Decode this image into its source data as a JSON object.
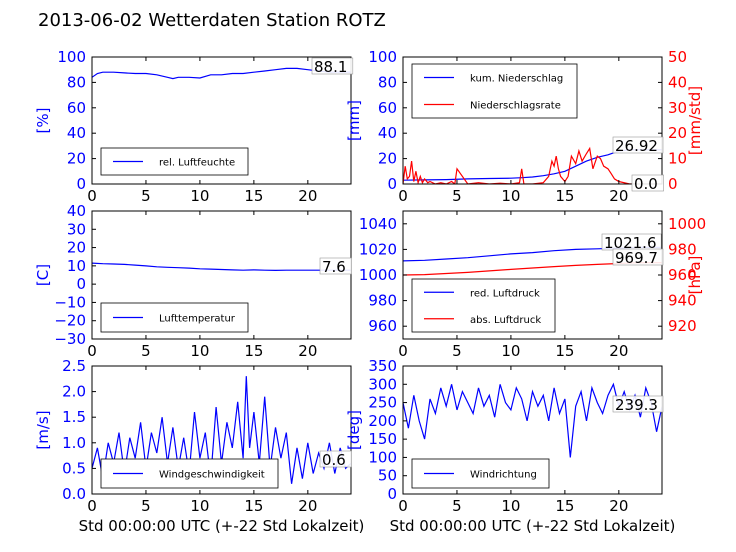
{
  "title": "2013-06-02 Wetterdaten Station ROTZ",
  "colors": {
    "left": "#0000ff",
    "right": "#ff0000",
    "axis": "#000000"
  },
  "chart_data": [
    {
      "type": "line",
      "xlim": [
        0,
        24
      ],
      "ylim": [
        0,
        100
      ],
      "xticks": [
        "0",
        "5",
        "10",
        "15",
        "20"
      ],
      "yticks": [
        "0",
        "20",
        "40",
        "60",
        "80",
        "100"
      ],
      "ylabel": "[%]",
      "legend_position": "bottom-left",
      "grid": false,
      "series": [
        {
          "name": "rel. Luftfeuchte",
          "axis": "left",
          "color": "#0000ff",
          "x": [
            0,
            0.5,
            1,
            2,
            3,
            4,
            5,
            6,
            7,
            7.5,
            8,
            9,
            10,
            11,
            12,
            13,
            14,
            15,
            16,
            17,
            18,
            19,
            20,
            21,
            22,
            23,
            24
          ],
          "y": [
            84,
            87,
            88,
            88,
            87.5,
            87,
            87,
            86,
            84,
            83,
            84,
            84,
            83.5,
            86,
            86,
            87,
            87,
            88,
            89,
            90,
            91,
            91,
            90,
            89,
            88,
            88.1,
            88.1
          ]
        }
      ],
      "annotation": "88.1"
    },
    {
      "type": "line",
      "xlim": [
        0,
        24
      ],
      "ylim": [
        0,
        100
      ],
      "ylim_right": [
        0,
        50
      ],
      "xticks": [
        "0",
        "5",
        "10",
        "15",
        "20"
      ],
      "yticks": [
        "0",
        "20",
        "40",
        "60",
        "80",
        "100"
      ],
      "yticks_right": [
        "0",
        "10",
        "20",
        "30",
        "40",
        "50"
      ],
      "ylabel": "[mm]",
      "ylabel_right": "[mm/std]",
      "legend_position": "top-left",
      "grid": false,
      "series": [
        {
          "name": "kum. Niederschlag",
          "axis": "left",
          "color": "#0000ff",
          "x": [
            0,
            2,
            4,
            6,
            8,
            10,
            11,
            12,
            13,
            14,
            15,
            16,
            17,
            18,
            19,
            20,
            21,
            22,
            23,
            24
          ],
          "y": [
            3,
            3.2,
            3.5,
            4,
            4.3,
            4.6,
            5,
            5.5,
            6.5,
            8,
            10,
            14,
            18,
            21,
            23,
            26,
            26.9,
            26.92,
            26.92,
            26.92
          ]
        },
        {
          "name": "Niederschlagsrate",
          "axis": "right",
          "color": "#ff0000",
          "x": [
            0,
            0.2,
            0.4,
            0.6,
            0.8,
            1.0,
            1.2,
            1.4,
            1.6,
            1.8,
            2.0,
            2.3,
            2.5,
            3,
            3.5,
            4,
            4.5,
            4.8,
            5,
            6,
            7,
            8,
            9,
            10,
            10.8,
            11,
            11.2,
            12,
            13,
            13.5,
            13.8,
            14,
            14.2,
            14.4,
            14.6,
            14.8,
            15,
            15.3,
            15.6,
            16,
            16.3,
            16.6,
            17,
            17.3,
            17.6,
            18,
            18.3,
            18.6,
            19,
            19.3,
            19.6,
            20,
            21,
            22,
            23,
            24
          ],
          "y": [
            0,
            7,
            2,
            3,
            9,
            1,
            5,
            0.5,
            3,
            0.5,
            2,
            0.5,
            1,
            0,
            0.5,
            0,
            1,
            0,
            6,
            0,
            0.5,
            0,
            0.3,
            0,
            0.5,
            6,
            0,
            0,
            0.5,
            3,
            9,
            7,
            11,
            6,
            3,
            2,
            1,
            3,
            11,
            8,
            13,
            9,
            12,
            14,
            6,
            11,
            10,
            7,
            6,
            4,
            2,
            1,
            0,
            0,
            0,
            0
          ]
        }
      ],
      "annotations": [
        "26.92",
        "0.0"
      ]
    },
    {
      "type": "line",
      "xlim": [
        0,
        24
      ],
      "ylim": [
        -30,
        40
      ],
      "xticks": [
        "0",
        "5",
        "10",
        "15",
        "20"
      ],
      "yticks": [
        "−30",
        "−20",
        "−10",
        "0",
        "10",
        "20",
        "30",
        "40"
      ],
      "ylabel": "[C]",
      "legend_position": "bottom-left",
      "grid": false,
      "series": [
        {
          "name": "Lufttemperatur",
          "axis": "left",
          "color": "#0000ff",
          "x": [
            0,
            1,
            2,
            3,
            4,
            5,
            6,
            7,
            8,
            9,
            10,
            11,
            12,
            13,
            14,
            15,
            16,
            17,
            18,
            19,
            20,
            21,
            22,
            23,
            24
          ],
          "y": [
            11.5,
            11.2,
            11,
            10.8,
            10.4,
            10,
            9.5,
            9.2,
            9,
            8.8,
            8.4,
            8.2,
            8.0,
            7.8,
            7.6,
            7.8,
            7.6,
            7.5,
            7.6,
            7.6,
            7.6,
            7.6,
            7.6,
            7.6,
            7.6
          ]
        }
      ],
      "annotation": "7.6"
    },
    {
      "type": "line",
      "xlim": [
        0,
        24
      ],
      "ylim": [
        950,
        1050
      ],
      "ylim_right": [
        910,
        1010
      ],
      "xticks": [
        "0",
        "5",
        "10",
        "15",
        "20"
      ],
      "yticks": [
        "960",
        "980",
        "1000",
        "1020",
        "1040"
      ],
      "yticks_right": [
        "920",
        "940",
        "960",
        "980",
        "1000"
      ],
      "ylabel_right": "[hPa]",
      "legend_position": "bottom-left",
      "grid": false,
      "series": [
        {
          "name": "red. Luftdruck",
          "axis": "left",
          "color": "#0000ff",
          "x": [
            0,
            2,
            4,
            6,
            8,
            10,
            12,
            14,
            16,
            18,
            20,
            22,
            24
          ],
          "y": [
            1011,
            1011.5,
            1012.5,
            1013.5,
            1015,
            1016.5,
            1017.5,
            1019,
            1020,
            1020.5,
            1021,
            1021.6,
            1021.6
          ]
        },
        {
          "name": "abs. Luftdruck",
          "axis": "right",
          "color": "#ff0000",
          "x": [
            0,
            2,
            4,
            6,
            8,
            10,
            12,
            14,
            16,
            18,
            20,
            22,
            24
          ],
          "y": [
            960,
            960.3,
            961.2,
            962,
            963.2,
            964.4,
            965.5,
            966.6,
            967.5,
            968.3,
            969,
            969.7,
            969.7
          ]
        }
      ],
      "annotations": [
        "1021.6",
        "969.7"
      ]
    },
    {
      "type": "line",
      "xlim": [
        0,
        24
      ],
      "ylim": [
        0,
        2.5
      ],
      "xticks": [
        "0",
        "5",
        "10",
        "15",
        "20"
      ],
      "yticks": [
        "0.0",
        "0.5",
        "1.0",
        "1.5",
        "2.0",
        "2.5"
      ],
      "ylabel": "[m/s]",
      "xlabel": "Std 00:00:00 UTC (+-22 Std Lokalzeit)",
      "legend_position": "bottom-center",
      "grid": false,
      "series": [
        {
          "name": "Windgeschwindigkeit",
          "axis": "left",
          "color": "#0000ff",
          "x": [
            0,
            0.5,
            1,
            1.5,
            2,
            2.5,
            3,
            3.5,
            4,
            4.5,
            5,
            5.5,
            6,
            6.5,
            7,
            7.5,
            8,
            8.5,
            9,
            9.5,
            10,
            10.5,
            11,
            11.5,
            12,
            12.5,
            13,
            13.5,
            14,
            14.3,
            14.6,
            15,
            15.5,
            16,
            16.5,
            17,
            17.5,
            18,
            18.5,
            19,
            19.5,
            20,
            20.5,
            21,
            21.5,
            22,
            22.5,
            23,
            23.5,
            24
          ],
          "y": [
            0.5,
            0.9,
            0.3,
            1.0,
            0.6,
            1.2,
            0.4,
            1.1,
            0.7,
            1.4,
            0.5,
            1.2,
            0.8,
            1.5,
            0.6,
            1.3,
            0.5,
            1.1,
            0.4,
            1.6,
            0.7,
            1.2,
            0.3,
            1.7,
            0.6,
            1.4,
            0.9,
            1.8,
            0.7,
            2.3,
            0.9,
            1.6,
            0.6,
            1.9,
            0.5,
            1.3,
            0.7,
            1.2,
            0.2,
            0.9,
            0.3,
            1.0,
            0.4,
            0.8,
            0.5,
            1.0,
            0.4,
            0.9,
            0.5,
            0.6
          ]
        }
      ],
      "annotation": "0.6"
    },
    {
      "type": "line",
      "xlim": [
        0,
        24
      ],
      "ylim": [
        0,
        350
      ],
      "xticks": [
        "0",
        "5",
        "10",
        "15",
        "20"
      ],
      "yticks": [
        "0",
        "50",
        "100",
        "150",
        "200",
        "250",
        "300",
        "350"
      ],
      "ylabel": "[deg]",
      "xlabel": "Std 00:00:00 UTC (+-22 Std Lokalzeit)",
      "legend_position": "bottom-left",
      "grid": false,
      "series": [
        {
          "name": "Windrichtung",
          "axis": "left",
          "color": "#0000ff",
          "x": [
            0,
            0.5,
            1,
            1.5,
            2,
            2.5,
            3,
            3.5,
            4,
            4.5,
            5,
            5.5,
            6,
            6.5,
            7,
            7.5,
            8,
            8.5,
            9,
            9.5,
            10,
            10.5,
            11,
            11.5,
            12,
            12.5,
            13,
            13.5,
            14,
            14.5,
            15,
            15.5,
            16,
            16.5,
            17,
            17.5,
            18,
            18.5,
            19,
            19.5,
            20,
            20.5,
            21,
            21.5,
            22,
            22.5,
            23,
            23.5,
            24
          ],
          "y": [
            250,
            180,
            270,
            200,
            150,
            260,
            220,
            290,
            240,
            300,
            230,
            280,
            250,
            220,
            290,
            240,
            270,
            210,
            300,
            250,
            230,
            290,
            260,
            200,
            280,
            240,
            270,
            200,
            290,
            220,
            260,
            100,
            240,
            280,
            200,
            290,
            250,
            220,
            270,
            300,
            240,
            280,
            230,
            270,
            210,
            290,
            250,
            170,
            239.3
          ]
        }
      ],
      "annotation": "239.3"
    }
  ]
}
